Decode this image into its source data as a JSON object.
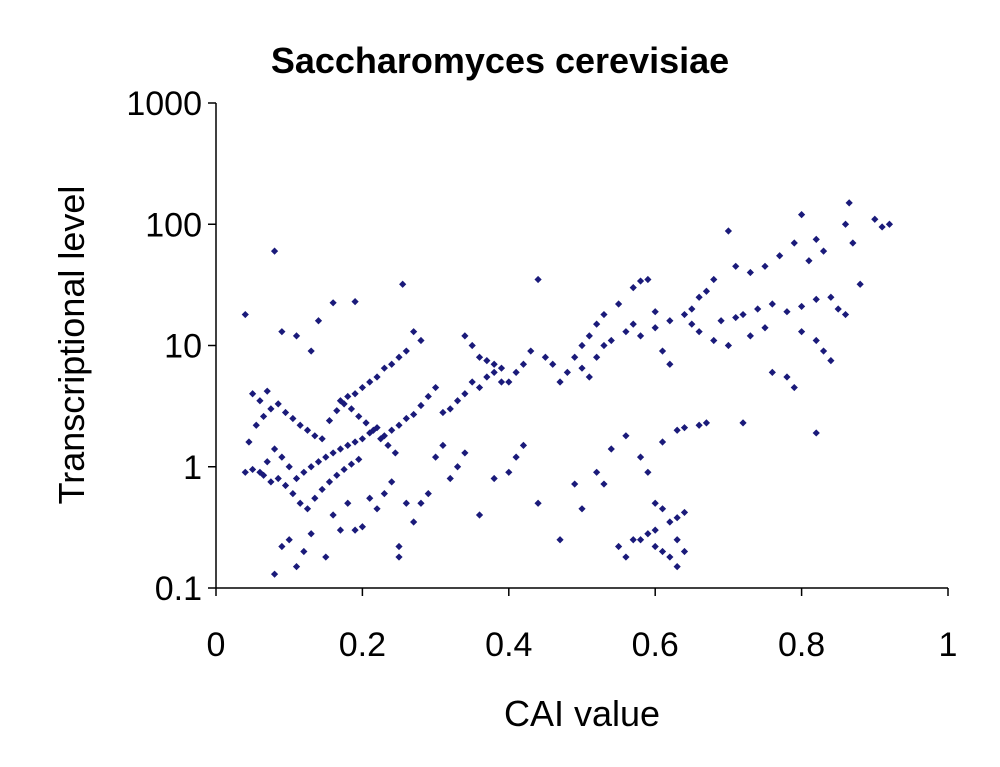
{
  "chart_data": {
    "type": "scatter",
    "title": "Saccharomyces cerevisiae",
    "xlabel": "CAI value",
    "ylabel": "Transcriptional level",
    "xlim": [
      0,
      1
    ],
    "ylim": [
      0.1,
      1000
    ],
    "y_scale": "log",
    "x_ticks": [
      "0",
      "0.2",
      "0.4",
      "0.6",
      "0.8",
      "1"
    ],
    "y_ticks": [
      "0.1",
      "1",
      "10",
      "100",
      "1000"
    ],
    "grid": false,
    "legend": "none",
    "marker": "diamond",
    "color": "#1a1a7a",
    "series": [
      {
        "points": [
          [
            0.08,
            60
          ],
          [
            0.04,
            18
          ],
          [
            0.255,
            32
          ],
          [
            0.19,
            23
          ],
          [
            0.16,
            22.5
          ],
          [
            0.14,
            16
          ],
          [
            0.09,
            13
          ],
          [
            0.11,
            12
          ],
          [
            0.13,
            9
          ],
          [
            0.07,
            4.2
          ],
          [
            0.05,
            4
          ],
          [
            0.06,
            3.5
          ],
          [
            0.08,
            0.13
          ],
          [
            0.11,
            0.15
          ],
          [
            0.12,
            0.2
          ],
          [
            0.15,
            0.18
          ],
          [
            0.1,
            0.25
          ],
          [
            0.09,
            0.22
          ],
          [
            0.13,
            0.28
          ],
          [
            0.17,
            0.3
          ],
          [
            0.19,
            0.3
          ],
          [
            0.2,
            0.32
          ],
          [
            0.25,
            0.18
          ],
          [
            0.25,
            0.22
          ],
          [
            0.27,
            0.35
          ],
          [
            0.22,
            0.45
          ],
          [
            0.23,
            0.6
          ],
          [
            0.24,
            0.75
          ],
          [
            0.18,
            0.5
          ],
          [
            0.16,
            0.4
          ],
          [
            0.21,
            0.55
          ],
          [
            0.26,
            0.5
          ],
          [
            0.3,
            1.2
          ],
          [
            0.31,
            1.5
          ],
          [
            0.32,
            0.8
          ],
          [
            0.33,
            1.0
          ],
          [
            0.34,
            1.3
          ],
          [
            0.29,
            0.6
          ],
          [
            0.28,
            0.5
          ],
          [
            0.36,
            0.4
          ],
          [
            0.38,
            0.8
          ],
          [
            0.4,
            0.9
          ],
          [
            0.41,
            1.2
          ],
          [
            0.42,
            1.5
          ],
          [
            0.44,
            0.5
          ],
          [
            0.47,
            0.25
          ],
          [
            0.49,
            0.72
          ],
          [
            0.5,
            0.45
          ],
          [
            0.53,
            0.72
          ],
          [
            0.52,
            0.9
          ],
          [
            0.54,
            1.4
          ],
          [
            0.56,
            1.8
          ],
          [
            0.58,
            1.2
          ],
          [
            0.55,
            0.22
          ],
          [
            0.56,
            0.18
          ],
          [
            0.58,
            0.25
          ],
          [
            0.6,
            0.22
          ],
          [
            0.61,
            0.2
          ],
          [
            0.62,
            0.18
          ],
          [
            0.63,
            0.15
          ],
          [
            0.64,
            0.2
          ],
          [
            0.6,
            0.3
          ],
          [
            0.62,
            0.35
          ],
          [
            0.63,
            0.38
          ],
          [
            0.64,
            0.42
          ],
          [
            0.6,
            0.5
          ],
          [
            0.61,
            0.45
          ],
          [
            0.63,
            0.25
          ],
          [
            0.59,
            0.28
          ],
          [
            0.57,
            0.25
          ],
          [
            0.59,
            0.9
          ],
          [
            0.61,
            1.6
          ],
          [
            0.63,
            2.0
          ],
          [
            0.64,
            2.1
          ],
          [
            0.66,
            2.2
          ],
          [
            0.67,
            2.3
          ],
          [
            0.72,
            2.3
          ],
          [
            0.82,
            1.9
          ],
          [
            0.79,
            4.5
          ],
          [
            0.78,
            5.5
          ],
          [
            0.76,
            6.0
          ],
          [
            0.84,
            7.5
          ],
          [
            0.83,
            9
          ],
          [
            0.82,
            11
          ],
          [
            0.8,
            13
          ],
          [
            0.75,
            14
          ],
          [
            0.73,
            12
          ],
          [
            0.7,
            10
          ],
          [
            0.68,
            11
          ],
          [
            0.66,
            13
          ],
          [
            0.65,
            15
          ],
          [
            0.69,
            16
          ],
          [
            0.71,
            17
          ],
          [
            0.72,
            18
          ],
          [
            0.74,
            20
          ],
          [
            0.76,
            22
          ],
          [
            0.78,
            19
          ],
          [
            0.8,
            21
          ],
          [
            0.82,
            24
          ],
          [
            0.84,
            25
          ],
          [
            0.85,
            20
          ],
          [
            0.86,
            18
          ],
          [
            0.88,
            32
          ],
          [
            0.87,
            70
          ],
          [
            0.86,
            100
          ],
          [
            0.865,
            150
          ],
          [
            0.9,
            110
          ],
          [
            0.92,
            100
          ],
          [
            0.91,
            95
          ],
          [
            0.8,
            120
          ],
          [
            0.79,
            70
          ],
          [
            0.82,
            75
          ],
          [
            0.83,
            60
          ],
          [
            0.81,
            50
          ],
          [
            0.77,
            55
          ],
          [
            0.75,
            45
          ],
          [
            0.73,
            40
          ],
          [
            0.71,
            45
          ],
          [
            0.7,
            88
          ],
          [
            0.68,
            35
          ],
          [
            0.67,
            28
          ],
          [
            0.66,
            25
          ],
          [
            0.65,
            20
          ],
          [
            0.64,
            18
          ],
          [
            0.6,
            19
          ],
          [
            0.59,
            35
          ],
          [
            0.58,
            34
          ],
          [
            0.57,
            30
          ],
          [
            0.55,
            22
          ],
          [
            0.53,
            18
          ],
          [
            0.52,
            15
          ],
          [
            0.51,
            12
          ],
          [
            0.5,
            10
          ],
          [
            0.49,
            8
          ],
          [
            0.48,
            6
          ],
          [
            0.47,
            5
          ],
          [
            0.46,
            7
          ],
          [
            0.45,
            8
          ],
          [
            0.44,
            35
          ],
          [
            0.43,
            9
          ],
          [
            0.42,
            7
          ],
          [
            0.41,
            6
          ],
          [
            0.4,
            5
          ],
          [
            0.39,
            6.5
          ],
          [
            0.38,
            7
          ],
          [
            0.37,
            5.5
          ],
          [
            0.36,
            4.5
          ],
          [
            0.35,
            5
          ],
          [
            0.34,
            4
          ],
          [
            0.33,
            3.5
          ],
          [
            0.32,
            3
          ],
          [
            0.31,
            2.8
          ],
          [
            0.3,
            4.5
          ],
          [
            0.29,
            3.8
          ],
          [
            0.28,
            3.2
          ],
          [
            0.27,
            2.7
          ],
          [
            0.26,
            2.5
          ],
          [
            0.25,
            2.2
          ],
          [
            0.24,
            2.0
          ],
          [
            0.23,
            1.8
          ],
          [
            0.22,
            2.1
          ],
          [
            0.21,
            1.9
          ],
          [
            0.2,
            1.7
          ],
          [
            0.19,
            1.6
          ],
          [
            0.18,
            1.5
          ],
          [
            0.17,
            1.4
          ],
          [
            0.16,
            1.3
          ],
          [
            0.15,
            1.2
          ],
          [
            0.14,
            1.1
          ],
          [
            0.13,
            1.0
          ],
          [
            0.12,
            0.9
          ],
          [
            0.11,
            0.8
          ],
          [
            0.1,
            1.0
          ],
          [
            0.09,
            1.2
          ],
          [
            0.08,
            1.4
          ],
          [
            0.07,
            1.1
          ],
          [
            0.06,
            0.9
          ],
          [
            0.05,
            0.95
          ],
          [
            0.04,
            0.9
          ],
          [
            0.045,
            1.6
          ],
          [
            0.055,
            2.2
          ],
          [
            0.065,
            2.6
          ],
          [
            0.075,
            3.0
          ],
          [
            0.085,
            3.3
          ],
          [
            0.095,
            2.8
          ],
          [
            0.105,
            2.5
          ],
          [
            0.115,
            2.2
          ],
          [
            0.125,
            2.0
          ],
          [
            0.135,
            1.8
          ],
          [
            0.145,
            1.7
          ],
          [
            0.155,
            2.4
          ],
          [
            0.165,
            2.9
          ],
          [
            0.175,
            3.3
          ],
          [
            0.185,
            3.0
          ],
          [
            0.195,
            2.6
          ],
          [
            0.205,
            2.3
          ],
          [
            0.215,
            2.0
          ],
          [
            0.225,
            1.7
          ],
          [
            0.235,
            1.5
          ],
          [
            0.245,
            1.3
          ],
          [
            0.105,
            0.6
          ],
          [
            0.115,
            0.5
          ],
          [
            0.125,
            0.45
          ],
          [
            0.135,
            0.55
          ],
          [
            0.145,
            0.65
          ],
          [
            0.155,
            0.75
          ],
          [
            0.165,
            0.85
          ],
          [
            0.175,
            0.95
          ],
          [
            0.185,
            1.05
          ],
          [
            0.195,
            1.15
          ],
          [
            0.095,
            0.7
          ],
          [
            0.085,
            0.8
          ],
          [
            0.075,
            0.75
          ],
          [
            0.065,
            0.85
          ],
          [
            0.34,
            12
          ],
          [
            0.35,
            10
          ],
          [
            0.36,
            8
          ],
          [
            0.37,
            7.5
          ],
          [
            0.38,
            6
          ],
          [
            0.39,
            5
          ],
          [
            0.27,
            13
          ],
          [
            0.28,
            11
          ],
          [
            0.26,
            9
          ],
          [
            0.25,
            8
          ],
          [
            0.24,
            7
          ],
          [
            0.23,
            6.5
          ],
          [
            0.22,
            5.5
          ],
          [
            0.21,
            5
          ],
          [
            0.2,
            4.5
          ],
          [
            0.19,
            4
          ],
          [
            0.18,
            3.8
          ],
          [
            0.17,
            3.5
          ],
          [
            0.5,
            6.5
          ],
          [
            0.51,
            5.5
          ],
          [
            0.52,
            8
          ],
          [
            0.53,
            10
          ],
          [
            0.54,
            11
          ],
          [
            0.56,
            13
          ],
          [
            0.57,
            15
          ],
          [
            0.58,
            12
          ],
          [
            0.6,
            14
          ],
          [
            0.62,
            16
          ],
          [
            0.61,
            9
          ],
          [
            0.62,
            7
          ]
        ]
      }
    ]
  }
}
